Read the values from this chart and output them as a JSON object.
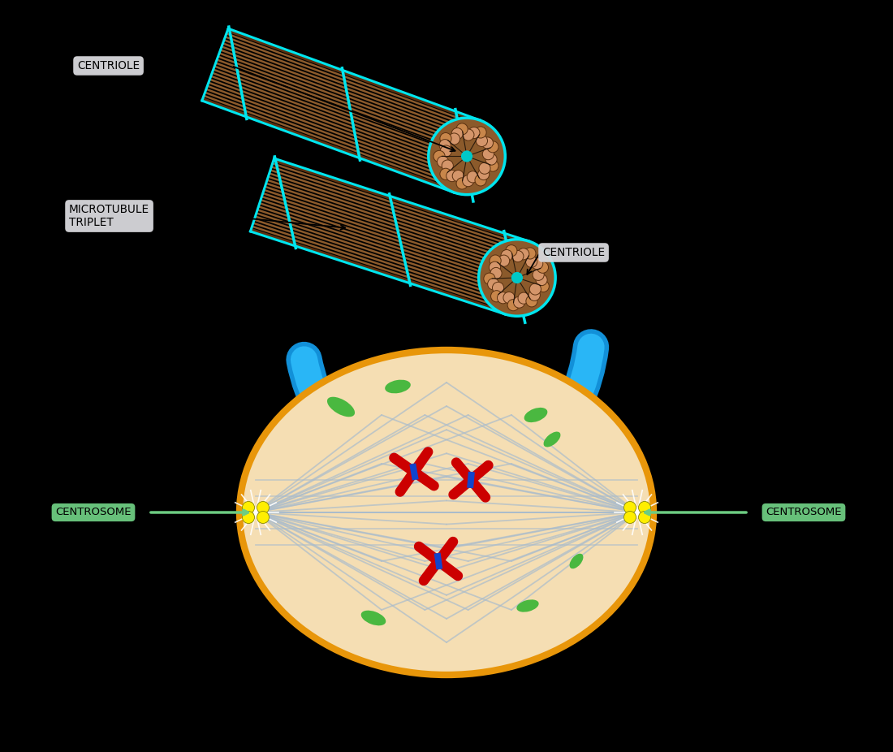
{
  "bg_color": "#000000",
  "cell_color": "#f5deb3",
  "cell_border_color": "#e8960a",
  "spindle_color": "#aabccc",
  "centrosome_color": "#ffee00",
  "chromosome_red": "#cc0000",
  "chromosome_blue": "#1144cc",
  "green_body_color": "#4ab840",
  "centriole_brown": "#8B5A2B",
  "centriole_brown_light": "#c8864a",
  "centriole_brown_dark": "#5a3010",
  "centriole_cyan": "#00e5ee",
  "centriole_cyan_dark": "#00a8b8",
  "centriole_center": "#00c8c8",
  "blue_arc_color": "#29b6f6",
  "label_bg": "#d8d8dc",
  "label_green": "#6dcc82",
  "font_family": "DejaVu Sans",
  "labels": {
    "centriole_top": "CENTRIOLE",
    "centriole_right": "CENTRIOLE",
    "microtubule": "MICROTUBULE\nTRIPLET",
    "centrosome_left": "CENTROSOME",
    "centrosome_right": "CENTROSOME"
  }
}
